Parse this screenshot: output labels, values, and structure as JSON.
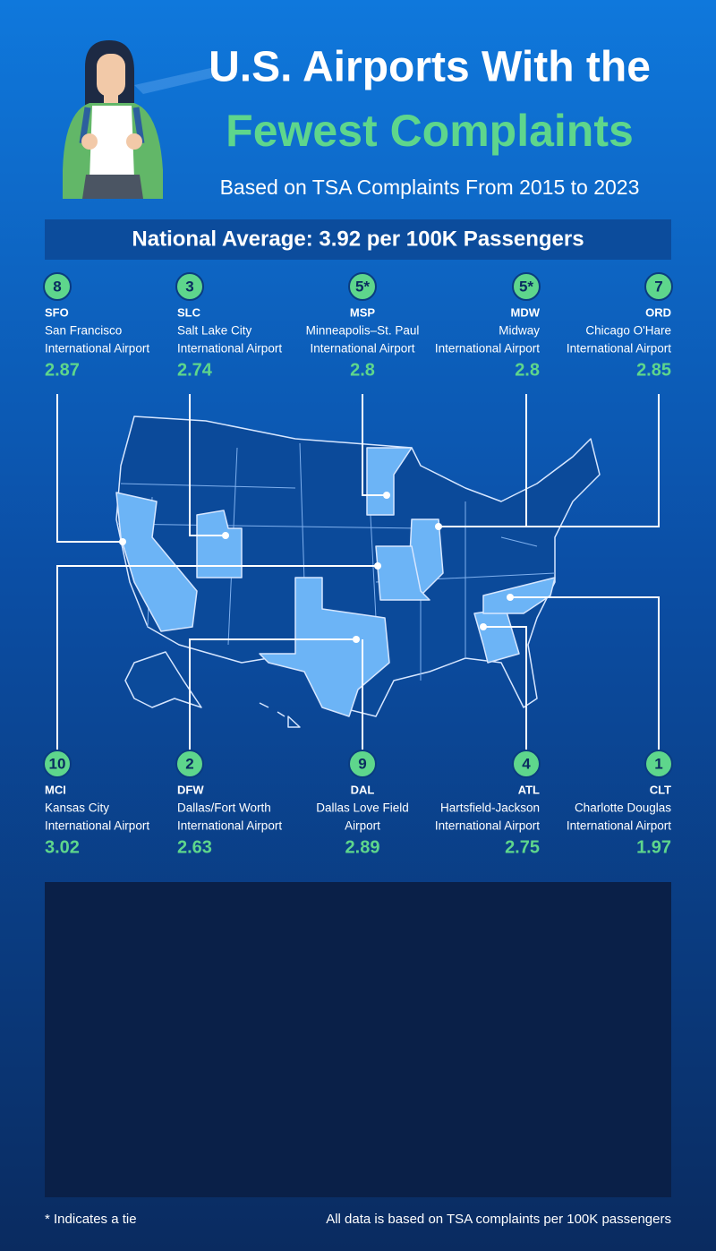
{
  "header": {
    "title_line1": "U.S. Airports With the",
    "title_line2": "Fewest Complaints",
    "subtitle": "Based on TSA Complaints From 2015 to 2023"
  },
  "national_average": "National Average: 3.92 per 100K Passengers",
  "airports": [
    {
      "rank": 8,
      "code": "SFO",
      "name_lines": [
        "San Francisco",
        "International Airport"
      ],
      "value": 2.87
    },
    {
      "rank": 3,
      "code": "SLC",
      "name_lines": [
        "Salt Lake City",
        "International Airport"
      ],
      "value": 2.74
    },
    {
      "rank": "5*",
      "code": "MSP",
      "name_lines": [
        "Minneapolis–St. Paul",
        "International Airport"
      ],
      "value": 2.8
    },
    {
      "rank": "5*",
      "code": "MDW",
      "name_lines": [
        "Midway",
        "International Airport"
      ],
      "value": 2.8
    },
    {
      "rank": 7,
      "code": "ORD",
      "name_lines": [
        "Chicago O'Hare",
        "International Airport"
      ],
      "value": 2.85
    },
    {
      "rank": 10,
      "code": "MCI",
      "name_lines": [
        "Kansas City",
        "International Airport"
      ],
      "value": 3.02
    },
    {
      "rank": 2,
      "code": "DFW",
      "name_lines": [
        "Dallas/Fort Worth",
        "International Airport"
      ],
      "value": 2.63
    },
    {
      "rank": 9,
      "code": "DAL",
      "name_lines": [
        "Dallas Love Field",
        "Airport"
      ],
      "value": 2.89
    },
    {
      "rank": 4,
      "code": "ATL",
      "name_lines": [
        "Hartsfield-Jackson",
        "International Airport"
      ],
      "value": 2.75
    },
    {
      "rank": 1,
      "code": "CLT",
      "name_lines": [
        "Charlotte Douglas",
        "International Airport"
      ],
      "value": 1.97
    }
  ],
  "footer": {
    "note": "* Indicates a tie",
    "source": "All data is based on TSA complaints per 100K passengers"
  }
}
